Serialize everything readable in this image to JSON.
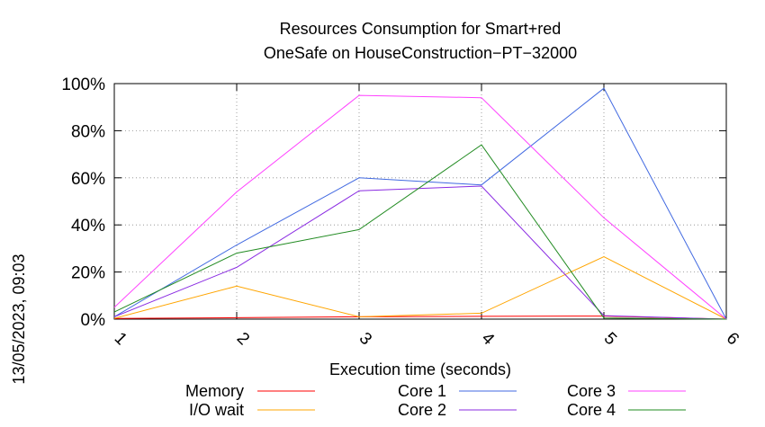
{
  "chart_data": {
    "type": "line",
    "title": "Resources Consumption for Smart+red",
    "subtitle": "OneSafe on HouseConstruction−PT−32000",
    "side_label": "13/05/2023, 09:03",
    "xlabel": "Execution time (seconds)",
    "ylabel": "",
    "x": [
      1,
      2,
      3,
      4,
      5,
      6
    ],
    "x_tick_labels": [
      "1",
      "2",
      "3",
      "4",
      "5",
      "6"
    ],
    "y_tick_labels": [
      "0%",
      "20%",
      "40%",
      "60%",
      "80%",
      "100%"
    ],
    "y_tick_values": [
      0,
      20,
      40,
      60,
      80,
      100
    ],
    "xlim": [
      1,
      6
    ],
    "ylim": [
      0,
      100
    ],
    "grid": true,
    "legend_position": "bottom",
    "series": [
      {
        "name": "Memory",
        "color": "#ff0000",
        "values": [
          0.3,
          0.6,
          1.0,
          1.2,
          1.3,
          0
        ]
      },
      {
        "name": "I/O wait",
        "color": "#ffa500",
        "values": [
          0.3,
          14,
          1.0,
          2.5,
          26.5,
          0
        ]
      },
      {
        "name": "Core 1",
        "color": "#4169e1",
        "values": [
          1,
          31.5,
          60,
          57,
          98,
          0
        ]
      },
      {
        "name": "Core 2",
        "color": "#8a2be2",
        "values": [
          1,
          22,
          54.5,
          56.5,
          1.5,
          0
        ]
      },
      {
        "name": "Core 3",
        "color": "#ff40ff",
        "values": [
          5,
          54,
          95,
          94,
          43,
          0
        ]
      },
      {
        "name": "Core 4",
        "color": "#228b22",
        "values": [
          3,
          28,
          38,
          74,
          0.5,
          0
        ]
      }
    ]
  }
}
